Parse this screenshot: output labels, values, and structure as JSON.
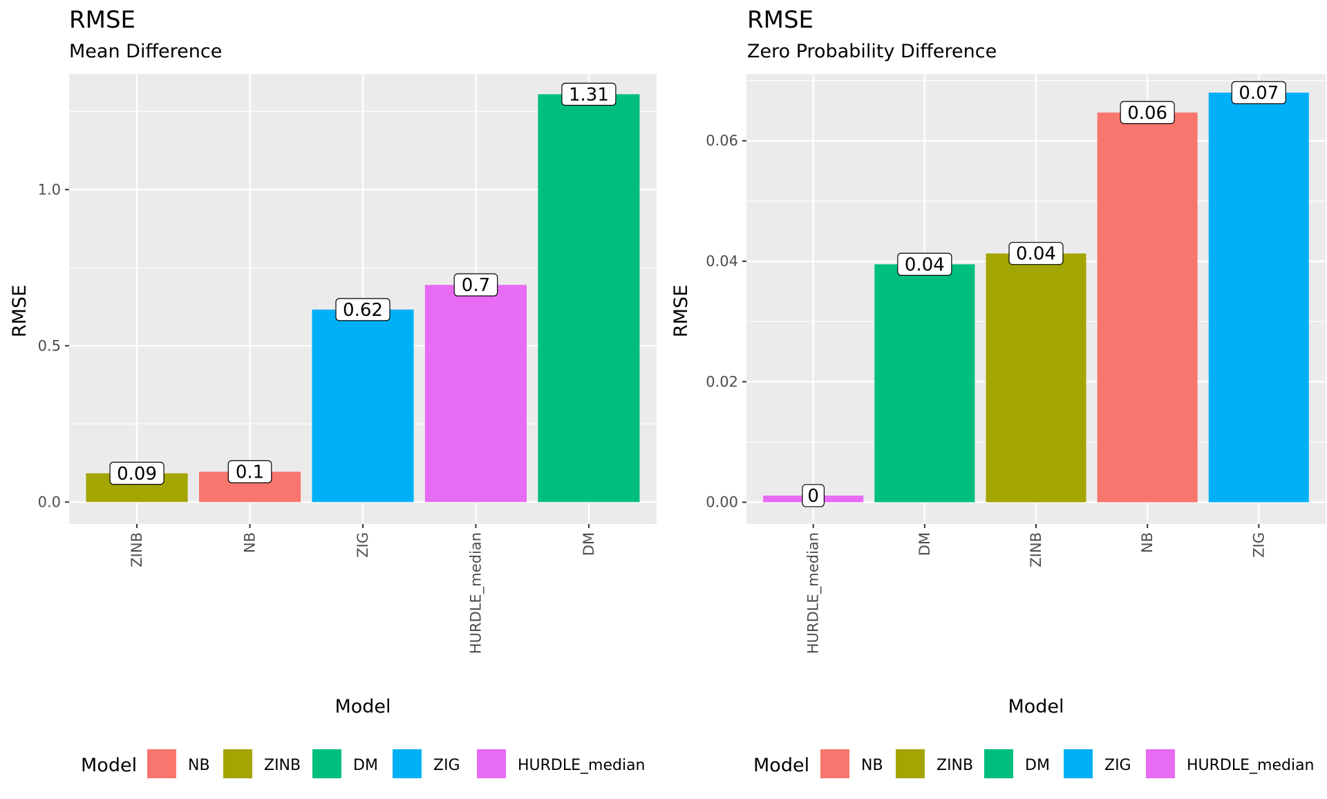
{
  "chart_data": [
    {
      "type": "bar",
      "title": "RMSE",
      "subtitle": "Mean Difference",
      "xlabel": "Model",
      "ylabel": "RMSE",
      "categories": [
        "ZINB",
        "NB",
        "ZIG",
        "HURDLE_median",
        "DM"
      ],
      "values": [
        0.092,
        0.097,
        0.616,
        0.695,
        1.305
      ],
      "labels": [
        "0.09",
        "0.1",
        "0.62",
        "0.7",
        "1.31"
      ],
      "ylim": [
        -0.07,
        1.37
      ],
      "yticks": [
        0.0,
        0.5,
        1.0
      ],
      "ytick_labels": [
        "0.0",
        "0.5",
        "1.0"
      ],
      "grid": true,
      "legend": {
        "title": "Model",
        "position": "bottom",
        "entries": [
          "NB",
          "ZINB",
          "DM",
          "ZIG",
          "HURDLE_median"
        ]
      }
    },
    {
      "type": "bar",
      "title": "RMSE",
      "subtitle": "Zero Probability Difference",
      "xlabel": "Model",
      "ylabel": "RMSE",
      "categories": [
        "HURDLE_median",
        "DM",
        "ZINB",
        "NB",
        "ZIG"
      ],
      "values": [
        0.0011,
        0.0395,
        0.0413,
        0.0647,
        0.068
      ],
      "labels": [
        "0",
        "0.04",
        "0.04",
        "0.06",
        "0.07"
      ],
      "ylim": [
        -0.0036,
        0.0711
      ],
      "yticks": [
        0.0,
        0.02,
        0.04,
        0.06
      ],
      "ytick_labels": [
        "0.00",
        "0.02",
        "0.04",
        "0.06"
      ],
      "grid": true,
      "legend": {
        "title": "Model",
        "position": "bottom",
        "entries": [
          "NB",
          "ZINB",
          "DM",
          "ZIG",
          "HURDLE_median"
        ]
      }
    }
  ],
  "colors": {
    "NB": "#F8766D",
    "ZINB": "#A3A500",
    "DM": "#00BF7D",
    "ZIG": "#00B0F6",
    "HURDLE_median": "#E76BF3",
    "panel_background": "#EBEBEB",
    "grid": "#FFFFFF"
  }
}
